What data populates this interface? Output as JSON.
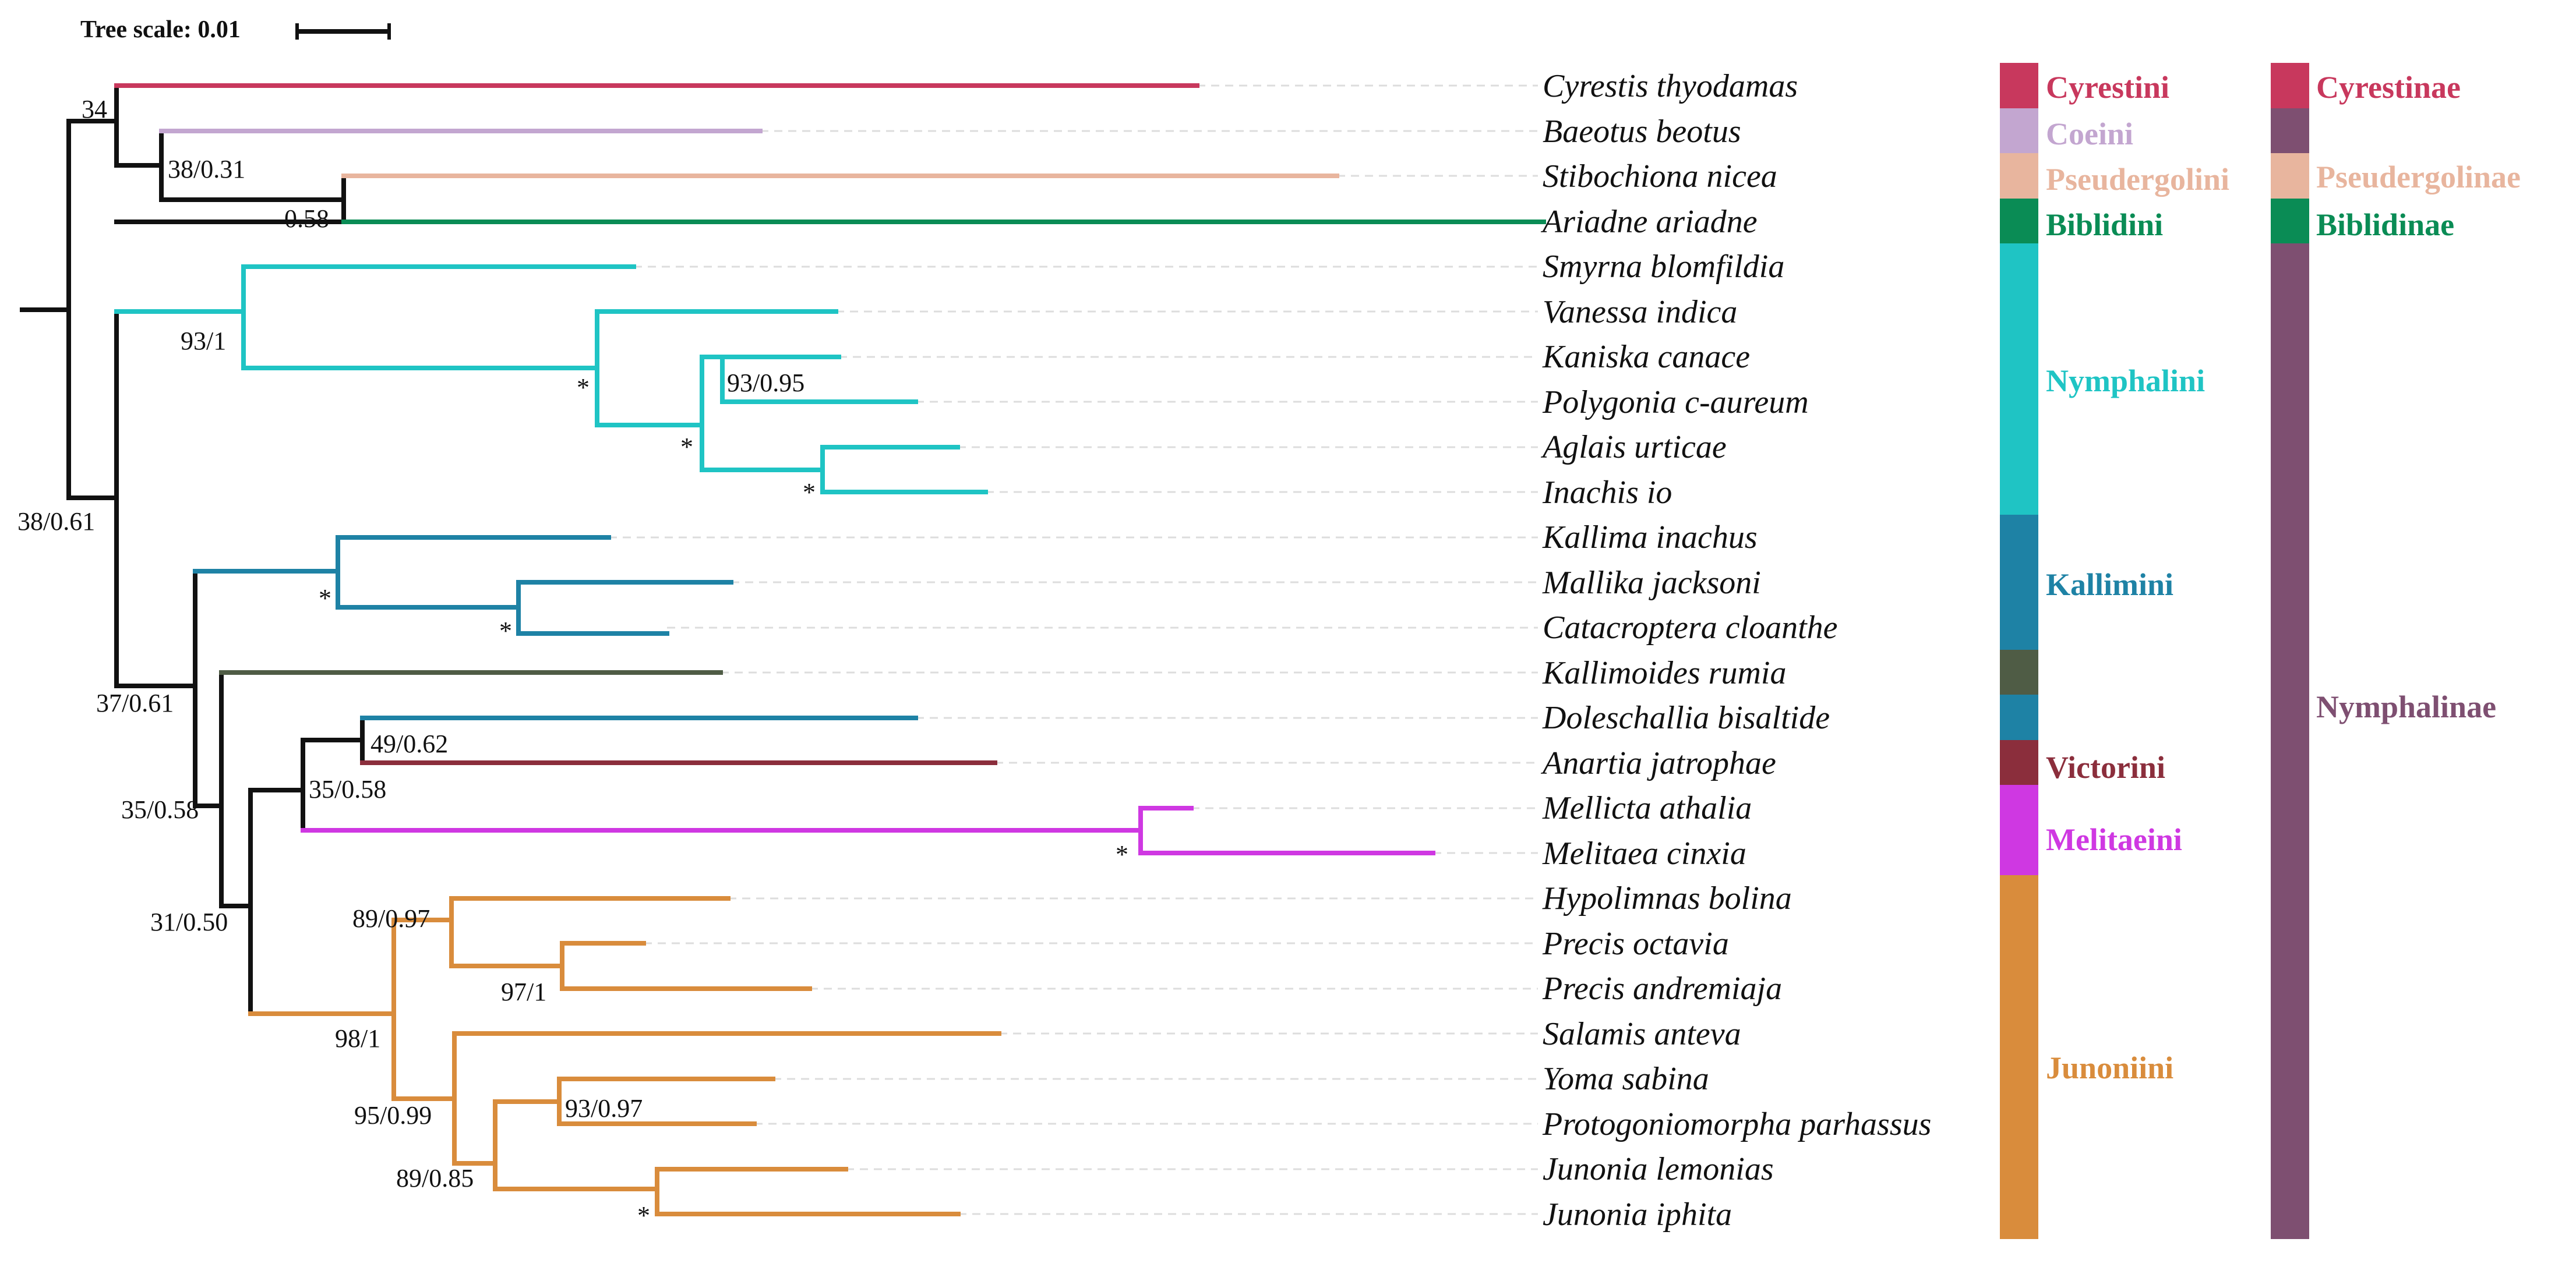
{
  "scale": {
    "label": "Tree scale: 0.01"
  },
  "colors": {
    "backbone": "#111111",
    "cyrestini": "#c8385d",
    "coeini": "#c3a6d0",
    "pseudergolini": "#e8b59e",
    "biblidini": "#0a8c55",
    "nymphalini": "#1fc4c4",
    "kallimini": "#1e82a5",
    "kallimoides": "#4f5c45",
    "victorini": "#8b2e3c",
    "melitaeini": "#cf38e2",
    "junoniini": "#d98c3c",
    "nymphalinae": "#7e4f71"
  },
  "taxa": [
    "Cyrestis thyodamas",
    "Baeotus beotus",
    "Stibochiona nicea",
    "Ariadne ariadne",
    "Smyrna blomfildia",
    "Vanessa indica",
    "Kaniska canace",
    "Polygonia c-aureum",
    "Aglais urticae",
    "Inachis io",
    "Kallima inachus",
    "Mallika jacksoni",
    "Catacroptera cloanthe",
    "Kallimoides rumia",
    "Doleschallia bisaltide",
    "Anartia jatrophae",
    "Mellicta athalia",
    "Melitaea cinxia",
    "Hypolimnas bolina",
    "Precis octavia",
    "Precis andremiaja",
    "Salamis anteva",
    "Yoma sabina",
    "Protogoniomorpha parhassus",
    "Junonia lemonias",
    "Junonia iphita"
  ],
  "supports": {
    "s_34": "34",
    "s_38_031": "38/0.31",
    "s_058": "0.58",
    "s_93_1": "93/1",
    "s_93_095": "93/0.95",
    "s_38_061": "38/0.61",
    "s_37_061": "37/0.61",
    "s_35_058a": "35/0.58",
    "s_49_062": "49/0.62",
    "s_35_058b": "35/0.58",
    "s_31_050": "31/0.50",
    "s_89_097": "89/0.97",
    "s_97_1": "97/1",
    "s_98_1": "98/1",
    "s_95_099": "95/0.99",
    "s_93_097": "93/0.97",
    "s_89_085": "89/0.85",
    "star": "*"
  },
  "tribes": {
    "cyrestini": "Cyrestini",
    "coeini": "Coeini",
    "pseudergolini": "Pseudergolini",
    "biblidini": "Biblidini",
    "nymphalini": "Nymphalini",
    "kallimini": "Kallimini",
    "victorini": "Victorini",
    "melitaeini": "Melitaeini",
    "junoniini": "Junoniini"
  },
  "subfamilies": {
    "cyrestinae": "Cyrestinae",
    "pseudergolinae": "Pseudergolinae",
    "biblidinae": "Biblidinae",
    "nymphalinae": "Nymphalinae"
  }
}
